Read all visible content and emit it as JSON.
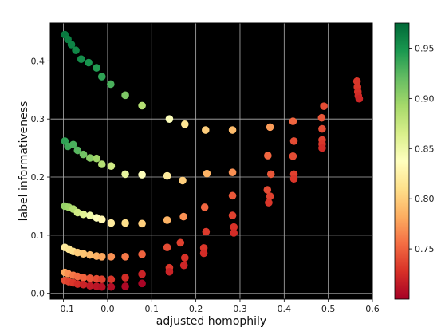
{
  "chart_data": {
    "type": "scatter",
    "title": "",
    "xlabel": "adjusted homophily",
    "ylabel": "label informativeness",
    "xlim": [
      -0.13,
      0.6
    ],
    "ylim": [
      -0.01,
      0.465
    ],
    "xticks": [
      "−0.1",
      "0.0",
      "0.1",
      "0.2",
      "0.3",
      "0.4",
      "0.5",
      "0.6"
    ],
    "xtick_values": [
      -0.1,
      0.0,
      0.1,
      0.2,
      0.3,
      0.4,
      0.5,
      0.6
    ],
    "yticks": [
      "0.0",
      "0.1",
      "0.2",
      "0.3",
      "0.4"
    ],
    "ytick_values": [
      0.0,
      0.1,
      0.2,
      0.3,
      0.4
    ],
    "grid": true,
    "background": "#000000",
    "colormap": "RdYlGn",
    "colorbar": {
      "range": [
        0.7,
        0.975
      ],
      "tick_labels": [
        "0.75",
        "0.80",
        "0.85",
        "0.90",
        "0.95"
      ],
      "tick_values": [
        0.75,
        0.8,
        0.85,
        0.9,
        0.95
      ]
    },
    "points": [
      {
        "x": -0.097,
        "y": 0.445,
        "c": 0.965
      },
      {
        "x": -0.09,
        "y": 0.437,
        "c": 0.962
      },
      {
        "x": -0.082,
        "y": 0.428,
        "c": 0.96
      },
      {
        "x": -0.072,
        "y": 0.418,
        "c": 0.957
      },
      {
        "x": -0.06,
        "y": 0.403,
        "c": 0.953
      },
      {
        "x": -0.043,
        "y": 0.397,
        "c": 0.95
      },
      {
        "x": -0.025,
        "y": 0.388,
        "c": 0.945
      },
      {
        "x": -0.013,
        "y": 0.373,
        "c": 0.94
      },
      {
        "x": 0.007,
        "y": 0.36,
        "c": 0.93
      },
      {
        "x": 0.04,
        "y": 0.341,
        "c": 0.91
      },
      {
        "x": 0.078,
        "y": 0.323,
        "c": 0.885
      },
      {
        "x": 0.14,
        "y": 0.3,
        "c": 0.84
      },
      {
        "x": 0.175,
        "y": 0.291,
        "c": 0.815
      },
      {
        "x": 0.222,
        "y": 0.281,
        "c": 0.8
      },
      {
        "x": 0.283,
        "y": 0.281,
        "c": 0.79
      },
      {
        "x": 0.368,
        "y": 0.286,
        "c": 0.775
      },
      {
        "x": 0.42,
        "y": 0.296,
        "c": 0.752
      },
      {
        "x": 0.485,
        "y": 0.302,
        "c": 0.745
      },
      {
        "x": 0.49,
        "y": 0.322,
        "c": 0.74
      },
      {
        "x": 0.565,
        "y": 0.365,
        "c": 0.73
      },
      {
        "x": 0.566,
        "y": 0.355,
        "c": 0.73
      },
      {
        "x": 0.567,
        "y": 0.347,
        "c": 0.728
      },
      {
        "x": 0.568,
        "y": 0.34,
        "c": 0.725
      },
      {
        "x": 0.57,
        "y": 0.335,
        "c": 0.722
      },
      {
        "x": -0.097,
        "y": 0.262,
        "c": 0.94
      },
      {
        "x": -0.09,
        "y": 0.253,
        "c": 0.935
      },
      {
        "x": -0.078,
        "y": 0.256,
        "c": 0.93
      },
      {
        "x": -0.068,
        "y": 0.246,
        "c": 0.925
      },
      {
        "x": -0.055,
        "y": 0.239,
        "c": 0.915
      },
      {
        "x": -0.04,
        "y": 0.233,
        "c": 0.905
      },
      {
        "x": -0.025,
        "y": 0.232,
        "c": 0.895
      },
      {
        "x": -0.013,
        "y": 0.222,
        "c": 0.885
      },
      {
        "x": 0.008,
        "y": 0.219,
        "c": 0.87
      },
      {
        "x": 0.04,
        "y": 0.205,
        "c": 0.855
      },
      {
        "x": 0.078,
        "y": 0.204,
        "c": 0.84
      },
      {
        "x": 0.135,
        "y": 0.202,
        "c": 0.82
      },
      {
        "x": 0.17,
        "y": 0.194,
        "c": 0.8
      },
      {
        "x": 0.225,
        "y": 0.206,
        "c": 0.785
      },
      {
        "x": 0.283,
        "y": 0.208,
        "c": 0.77
      },
      {
        "x": 0.363,
        "y": 0.237,
        "c": 0.752
      },
      {
        "x": 0.37,
        "y": 0.205,
        "c": 0.745
      },
      {
        "x": 0.42,
        "y": 0.236,
        "c": 0.74
      },
      {
        "x": 0.422,
        "y": 0.262,
        "c": 0.74
      },
      {
        "x": 0.422,
        "y": 0.205,
        "c": 0.735
      },
      {
        "x": 0.422,
        "y": 0.197,
        "c": 0.73
      },
      {
        "x": 0.486,
        "y": 0.283,
        "c": 0.74
      },
      {
        "x": 0.486,
        "y": 0.264,
        "c": 0.735
      },
      {
        "x": 0.486,
        "y": 0.257,
        "c": 0.73
      },
      {
        "x": 0.486,
        "y": 0.25,
        "c": 0.725
      },
      {
        "x": -0.097,
        "y": 0.15,
        "c": 0.9
      },
      {
        "x": -0.088,
        "y": 0.148,
        "c": 0.895
      },
      {
        "x": -0.078,
        "y": 0.145,
        "c": 0.885
      },
      {
        "x": -0.068,
        "y": 0.139,
        "c": 0.87
      },
      {
        "x": -0.055,
        "y": 0.136,
        "c": 0.86
      },
      {
        "x": -0.04,
        "y": 0.134,
        "c": 0.85
      },
      {
        "x": -0.025,
        "y": 0.13,
        "c": 0.84
      },
      {
        "x": -0.013,
        "y": 0.127,
        "c": 0.83
      },
      {
        "x": 0.008,
        "y": 0.121,
        "c": 0.82
      },
      {
        "x": 0.04,
        "y": 0.121,
        "c": 0.81
      },
      {
        "x": 0.078,
        "y": 0.12,
        "c": 0.8
      },
      {
        "x": 0.135,
        "y": 0.126,
        "c": 0.785
      },
      {
        "x": 0.172,
        "y": 0.132,
        "c": 0.77
      },
      {
        "x": 0.22,
        "y": 0.148,
        "c": 0.752
      },
      {
        "x": 0.283,
        "y": 0.168,
        "c": 0.745
      },
      {
        "x": 0.283,
        "y": 0.134,
        "c": 0.735
      },
      {
        "x": 0.286,
        "y": 0.114,
        "c": 0.728
      },
      {
        "x": 0.286,
        "y": 0.104,
        "c": 0.725
      },
      {
        "x": 0.223,
        "y": 0.106,
        "c": 0.732
      },
      {
        "x": 0.362,
        "y": 0.178,
        "c": 0.74
      },
      {
        "x": 0.368,
        "y": 0.167,
        "c": 0.735
      },
      {
        "x": 0.365,
        "y": 0.156,
        "c": 0.73
      },
      {
        "x": -0.097,
        "y": 0.079,
        "c": 0.82
      },
      {
        "x": -0.088,
        "y": 0.076,
        "c": 0.815
      },
      {
        "x": -0.078,
        "y": 0.072,
        "c": 0.81
      },
      {
        "x": -0.068,
        "y": 0.07,
        "c": 0.8
      },
      {
        "x": -0.055,
        "y": 0.068,
        "c": 0.795
      },
      {
        "x": -0.04,
        "y": 0.066,
        "c": 0.79
      },
      {
        "x": -0.025,
        "y": 0.064,
        "c": 0.785
      },
      {
        "x": -0.013,
        "y": 0.063,
        "c": 0.78
      },
      {
        "x": 0.008,
        "y": 0.063,
        "c": 0.77
      },
      {
        "x": 0.04,
        "y": 0.063,
        "c": 0.76
      },
      {
        "x": 0.078,
        "y": 0.067,
        "c": 0.75
      },
      {
        "x": 0.135,
        "y": 0.079,
        "c": 0.74
      },
      {
        "x": 0.165,
        "y": 0.087,
        "c": 0.735
      },
      {
        "x": 0.175,
        "y": 0.061,
        "c": 0.728
      },
      {
        "x": 0.173,
        "y": 0.048,
        "c": 0.722
      },
      {
        "x": 0.218,
        "y": 0.078,
        "c": 0.73
      },
      {
        "x": 0.218,
        "y": 0.069,
        "c": 0.725
      },
      {
        "x": 0.14,
        "y": 0.044,
        "c": 0.73
      },
      {
        "x": 0.14,
        "y": 0.037,
        "c": 0.72
      },
      {
        "x": -0.097,
        "y": 0.036,
        "c": 0.78
      },
      {
        "x": -0.09,
        "y": 0.034,
        "c": 0.77
      },
      {
        "x": -0.078,
        "y": 0.031,
        "c": 0.76
      },
      {
        "x": -0.068,
        "y": 0.029,
        "c": 0.755
      },
      {
        "x": -0.055,
        "y": 0.027,
        "c": 0.75
      },
      {
        "x": -0.04,
        "y": 0.026,
        "c": 0.745
      },
      {
        "x": -0.025,
        "y": 0.025,
        "c": 0.74
      },
      {
        "x": -0.013,
        "y": 0.024,
        "c": 0.735
      },
      {
        "x": 0.008,
        "y": 0.024,
        "c": 0.73
      },
      {
        "x": 0.04,
        "y": 0.027,
        "c": 0.725
      },
      {
        "x": 0.078,
        "y": 0.033,
        "c": 0.72
      },
      {
        "x": -0.097,
        "y": 0.022,
        "c": 0.74
      },
      {
        "x": -0.088,
        "y": 0.02,
        "c": 0.735
      },
      {
        "x": -0.078,
        "y": 0.018,
        "c": 0.73
      },
      {
        "x": -0.068,
        "y": 0.016,
        "c": 0.725
      },
      {
        "x": -0.055,
        "y": 0.015,
        "c": 0.72
      },
      {
        "x": -0.04,
        "y": 0.013,
        "c": 0.715
      },
      {
        "x": -0.025,
        "y": 0.012,
        "c": 0.712
      },
      {
        "x": -0.013,
        "y": 0.011,
        "c": 0.71
      },
      {
        "x": 0.008,
        "y": 0.011,
        "c": 0.708
      },
      {
        "x": 0.04,
        "y": 0.012,
        "c": 0.705
      },
      {
        "x": 0.078,
        "y": 0.017,
        "c": 0.703
      }
    ]
  }
}
